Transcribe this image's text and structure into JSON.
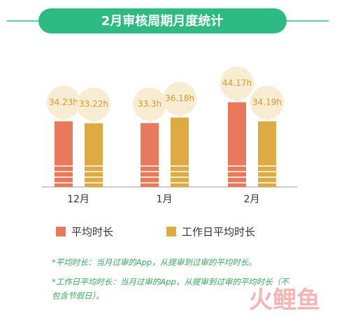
{
  "chart_data": {
    "type": "bar",
    "title": "2月审核周期月度统计",
    "categories": [
      "12月",
      "1月",
      "2月"
    ],
    "series": [
      {
        "name": "平均时长",
        "color": "#e8795a",
        "values": [
          34.23,
          33.3,
          44.17
        ],
        "value_labels": [
          "34.23h",
          "33.3h",
          "44.17h"
        ]
      },
      {
        "name": "工作日平均时长",
        "color": "#ddab42",
        "values": [
          33.22,
          36.18,
          34.19
        ],
        "value_labels": [
          "33.22h",
          "36.18h",
          "34.19h"
        ]
      }
    ],
    "notes": [
      "*平均时长：当月过审的App，从提审到过审的平均时长。",
      "*工作日平均时长：当月过审的App，从提审到过审的平均时长（不包含节假日）。"
    ],
    "watermark": "火鲤鱼"
  }
}
